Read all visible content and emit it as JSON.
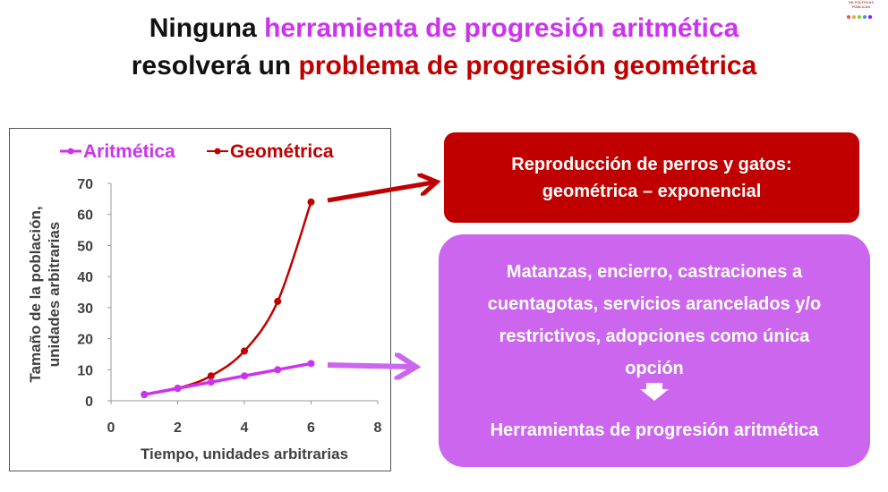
{
  "title": {
    "line1_prefix": "Ninguna ",
    "line1_highlight": "herramienta de progresión aritmética",
    "line2_prefix": "resolverá un ",
    "line2_highlight": "problema de progresión geométrica"
  },
  "logo": {
    "text": "DE POLÍTICAS PÚBLICAS"
  },
  "colors": {
    "arith": "#cc33ee",
    "geom": "#c00000",
    "purple_box": "#cc66ee",
    "red_box": "#c00000"
  },
  "chart_data": {
    "type": "line",
    "xlabel": "Tiempo, unidades arbitrarias",
    "ylabel_line1": "Tamaño de la población,",
    "ylabel_line2": "unidades arbitrarias",
    "xlim": [
      0,
      8
    ],
    "ylim": [
      0,
      70
    ],
    "xticks": [
      0,
      2,
      4,
      6,
      8
    ],
    "yticks": [
      0,
      10,
      20,
      30,
      40,
      50,
      60,
      70
    ],
    "grid": false,
    "legend_position": "top",
    "x": [
      1,
      2,
      3,
      4,
      5,
      6
    ],
    "series": [
      {
        "name": "Aritmética",
        "values": [
          2,
          4,
          6,
          8,
          10,
          12
        ],
        "color": "#cc33ee"
      },
      {
        "name": "Geométrica",
        "values": [
          2,
          4,
          8,
          16,
          32,
          64
        ],
        "color": "#c00000"
      }
    ]
  },
  "red_box": {
    "line1": "Reproducción de perros y gatos:",
    "line2": "geométrica – exponencial"
  },
  "purple_box": {
    "line1": "Matanzas, encierro, castraciones a",
    "line2": "cuentagotas, servicios  arancelados y/o",
    "line3": "restrictivos, adopciones como única",
    "line4": "opción",
    "tools": "Herramientas de progresión aritmética"
  }
}
